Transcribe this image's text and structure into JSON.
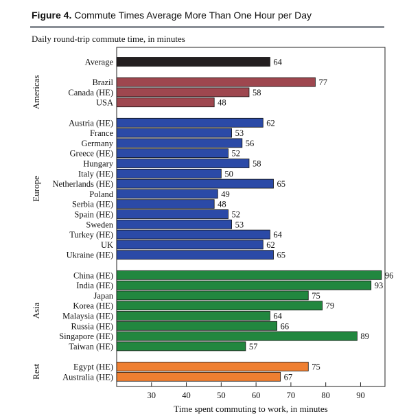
{
  "figure": {
    "number": "Figure 4.",
    "title": "Commute Times Average More Than One Hour per Day",
    "subtitle": "Daily round-trip commute time, in minutes"
  },
  "colors": {
    "Average": "#231f20",
    "Americas": "#9e474f",
    "Europe": "#2b4aa7",
    "Asia": "#22873f",
    "Rest": "#ef7f31",
    "axis": "#222222"
  },
  "chart_data": {
    "type": "bar",
    "orientation": "horizontal",
    "xlabel": "Time spent commuting to work, in minutes",
    "xlim": [
      20,
      97
    ],
    "xticks": [
      30,
      40,
      50,
      60,
      70,
      80,
      90
    ],
    "grid": false,
    "groups": [
      {
        "name": "",
        "key": "Average",
        "categories": [
          "Average"
        ],
        "values": [
          64
        ]
      },
      {
        "name": "Americas",
        "key": "Americas",
        "categories": [
          "Brazil",
          "Canada (HE)",
          "USA"
        ],
        "values": [
          77,
          58,
          48
        ]
      },
      {
        "name": "Europe",
        "key": "Europe",
        "categories": [
          "Austria (HE)",
          "France",
          "Germany",
          "Greece (HE)",
          "Hungary",
          "Italy (HE)",
          "Netherlands (HE)",
          "Poland",
          "Serbia (HE)",
          "Spain (HE)",
          "Sweden",
          "Turkey (HE)",
          "UK",
          "Ukraine (HE)"
        ],
        "values": [
          62,
          53,
          56,
          52,
          58,
          50,
          65,
          49,
          48,
          52,
          53,
          64,
          62,
          65
        ]
      },
      {
        "name": "Asia",
        "key": "Asia",
        "categories": [
          "China (HE)",
          "India (HE)",
          "Japan",
          "Korea (HE)",
          "Malaysia (HE)",
          "Russia (HE)",
          "Singapore (HE)",
          "Taiwan (HE)"
        ],
        "values": [
          96,
          93,
          75,
          79,
          64,
          66,
          89,
          57
        ]
      },
      {
        "name": "Rest",
        "key": "Rest",
        "categories": [
          "Egypt (HE)",
          "Australia (HE)"
        ],
        "values": [
          75,
          67
        ]
      }
    ]
  }
}
